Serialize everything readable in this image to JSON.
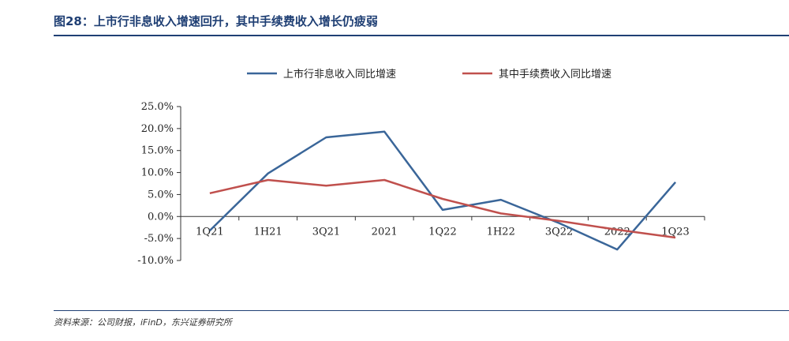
{
  "header": {
    "title": "图28：上市行非息收入增速回升，其中手续费收入增长仍疲弱"
  },
  "footer": {
    "source": "资料来源：公司财报，iFinD，东兴证券研究所"
  },
  "chart_data": {
    "type": "line",
    "categories": [
      "1Q21",
      "1H21",
      "3Q21",
      "2021",
      "1Q22",
      "1H22",
      "3Q22",
      "2022",
      "1Q23"
    ],
    "series": [
      {
        "name": "上市行非息收入同比增速",
        "color": "#3a6699",
        "values": [
          -3.2,
          9.8,
          18.0,
          19.3,
          1.5,
          3.8,
          -1.5,
          -7.5,
          7.8
        ]
      },
      {
        "name": "其中手续费收入同比增速",
        "color": "#c0504d",
        "values": [
          5.3,
          8.3,
          7.0,
          8.3,
          4.0,
          0.7,
          -1.0,
          -3.0,
          -4.8
        ]
      }
    ],
    "ylim": [
      -10,
      25
    ],
    "yticks": [
      "25.0%",
      "20.0%",
      "15.0%",
      "10.0%",
      "5.0%",
      "0.0%",
      "-5.0%",
      "-10.0%"
    ],
    "ytick_values": [
      25,
      20,
      15,
      10,
      5,
      0,
      -5,
      -10
    ],
    "legend_position": "top",
    "grid": false
  }
}
